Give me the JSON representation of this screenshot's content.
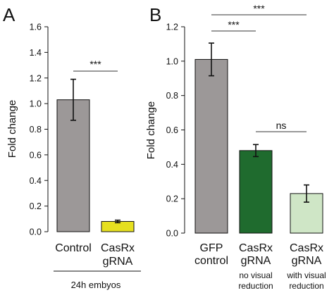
{
  "panels": {
    "a": {
      "letter": "A"
    },
    "b": {
      "letter": "B"
    }
  },
  "group_label": "24h embyos",
  "chart_data": [
    {
      "type": "bar",
      "panel": "A",
      "ylabel": "Fold change",
      "ylim": [
        0,
        1.6
      ],
      "yticks": [
        "0.0",
        "0.2",
        "0.4",
        "0.6",
        "0.8",
        "1.0",
        "1.2",
        "1.4",
        "1.6"
      ],
      "categories": [
        {
          "lines": [
            "Control"
          ]
        },
        {
          "lines": [
            "CasRx",
            "gRNA"
          ]
        }
      ],
      "values": [
        1.03,
        0.08
      ],
      "errors": [
        0.16,
        0.01
      ],
      "colors": [
        "#9c9898",
        "#e6e020"
      ],
      "significance": [
        {
          "from": 0,
          "to": 1,
          "label": "***"
        }
      ]
    },
    {
      "type": "bar",
      "panel": "B",
      "ylabel": "Fold change",
      "ylim": [
        0,
        1.2
      ],
      "yticks": [
        "0.0",
        "0.2",
        "0.4",
        "0.6",
        "0.8",
        "1.0",
        "1.2"
      ],
      "categories": [
        {
          "lines": [
            "GFP",
            "control"
          ],
          "sub": []
        },
        {
          "lines": [
            "CasRx",
            "gRNA"
          ],
          "sub": [
            "no visual",
            "reduction"
          ]
        },
        {
          "lines": [
            "CasRx",
            "gRNA"
          ],
          "sub": [
            "with visual",
            "reduction"
          ]
        }
      ],
      "values": [
        1.01,
        0.48,
        0.23
      ],
      "errors": [
        0.095,
        0.035,
        0.05
      ],
      "colors": [
        "#9c9898",
        "#1f6b2e",
        "#cfe6c6"
      ],
      "significance": [
        {
          "from": 0,
          "to": 1,
          "label": "***"
        },
        {
          "from": 0,
          "to": 2,
          "label": "***"
        },
        {
          "from": 1,
          "to": 2,
          "label": "ns"
        }
      ]
    }
  ]
}
